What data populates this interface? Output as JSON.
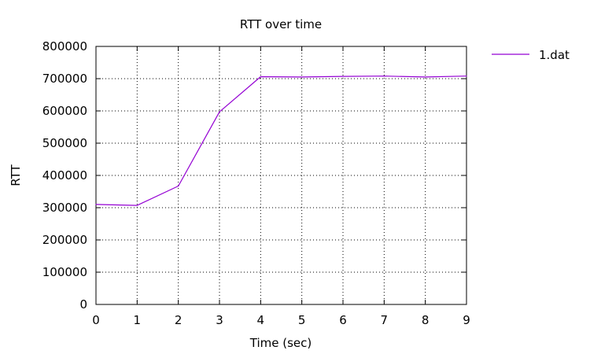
{
  "chart_data": {
    "type": "line",
    "title": "RTT over time",
    "xlabel": "Time (sec)",
    "ylabel": "RTT",
    "xlim": [
      0,
      9
    ],
    "ylim": [
      0,
      800000
    ],
    "x_ticks": [
      0,
      1,
      2,
      3,
      4,
      5,
      6,
      7,
      8,
      9
    ],
    "y_ticks": [
      0,
      100000,
      200000,
      300000,
      400000,
      500000,
      600000,
      700000,
      800000
    ],
    "grid": true,
    "legend_position": "top-right outside",
    "series": [
      {
        "name": "1.dat",
        "color": "#9400d3",
        "x": [
          0,
          1,
          2,
          3,
          4,
          5,
          6,
          7,
          8,
          9
        ],
        "y": [
          310000,
          307000,
          367000,
          597000,
          706000,
          705000,
          707000,
          708000,
          705000,
          708000
        ]
      }
    ]
  }
}
